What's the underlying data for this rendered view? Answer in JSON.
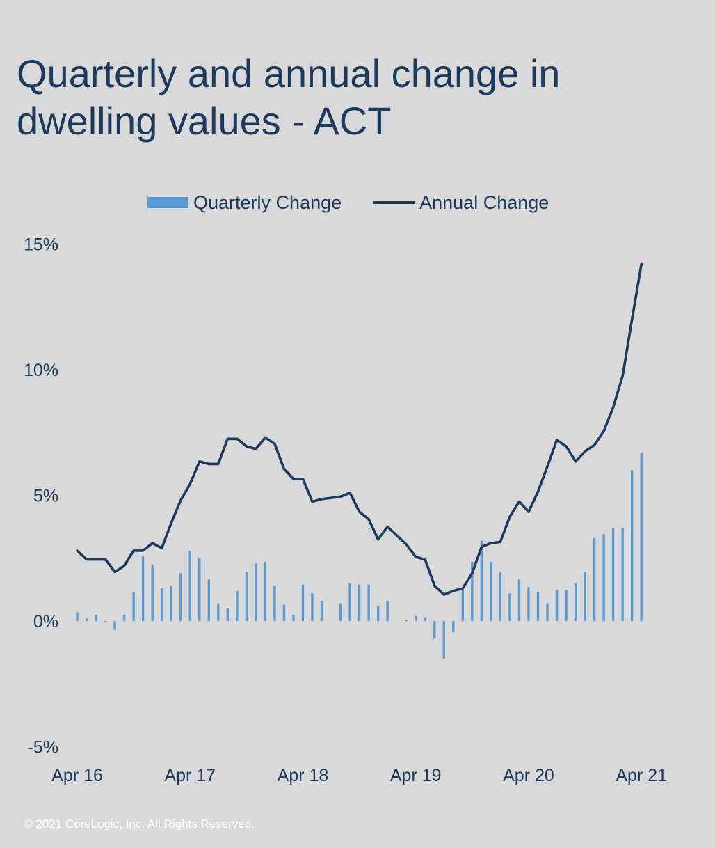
{
  "title": {
    "line1": "Quarterly and annual change in",
    "line2": "dwelling values - ACT"
  },
  "legend": {
    "quarterly": "Quarterly Change",
    "annual": "Annual Change"
  },
  "footer": "© 2021 CoreLogic,  Inc. All Rights Reserved.",
  "colors": {
    "bar": "#5b9bd5",
    "line": "#1b3a5e",
    "text": "#1b3a5e",
    "background": "#d9d9d9"
  },
  "chart_data": {
    "type": "bar+line",
    "title": "Quarterly and annual change in dwelling values - ACT",
    "xlabel": "",
    "ylabel": "",
    "ylim": [
      -5,
      15
    ],
    "y_ticks": [
      15,
      10,
      5,
      0,
      -5
    ],
    "y_tick_labels": [
      "15%",
      "10%",
      "5%",
      "0%",
      "-5%"
    ],
    "x_tick_labels": [
      "Apr 16",
      "Apr 17",
      "Apr 18",
      "Apr 19",
      "Apr 20",
      "Apr 21"
    ],
    "x_tick_month_index": [
      0,
      12,
      24,
      36,
      48,
      60
    ],
    "months": 61,
    "grid": false,
    "legend_position": "top",
    "series": [
      {
        "name": "Quarterly Change",
        "type": "bar",
        "values": [
          0.35,
          0.1,
          0.25,
          -0.05,
          -0.35,
          0.25,
          1.15,
          2.6,
          2.25,
          1.3,
          1.4,
          1.9,
          2.8,
          2.5,
          1.65,
          0.7,
          0.5,
          1.2,
          1.95,
          2.3,
          2.35,
          1.4,
          0.65,
          0.25,
          1.45,
          1.1,
          0.8,
          0.0,
          0.7,
          1.5,
          1.45,
          1.45,
          0.6,
          0.8,
          0.0,
          0.05,
          0.2,
          0.15,
          -0.7,
          -1.5,
          -0.45,
          1.25,
          2.35,
          3.2,
          2.35,
          1.95,
          1.1,
          1.65,
          1.35,
          1.15,
          0.7,
          1.25,
          1.25,
          1.5,
          1.95,
          3.3,
          3.45,
          3.7,
          3.7,
          6.0,
          6.7
        ]
      },
      {
        "name": "Annual Change",
        "type": "line",
        "values": [
          2.8,
          2.45,
          2.45,
          2.45,
          1.95,
          2.2,
          2.8,
          2.8,
          3.1,
          2.9,
          3.9,
          4.8,
          5.45,
          6.35,
          6.25,
          6.25,
          7.25,
          7.25,
          6.95,
          6.85,
          7.3,
          7.05,
          6.05,
          5.65,
          5.65,
          4.75,
          4.85,
          4.9,
          4.95,
          5.1,
          4.35,
          4.05,
          3.25,
          3.75,
          3.4,
          3.05,
          2.55,
          2.45,
          1.4,
          1.05,
          1.2,
          1.3,
          1.9,
          2.95,
          3.1,
          3.15,
          4.15,
          4.75,
          4.35,
          5.15,
          6.15,
          7.2,
          6.95,
          6.35,
          6.75,
          7.0,
          7.55,
          8.5,
          9.75,
          12.0,
          14.2
        ]
      }
    ]
  }
}
